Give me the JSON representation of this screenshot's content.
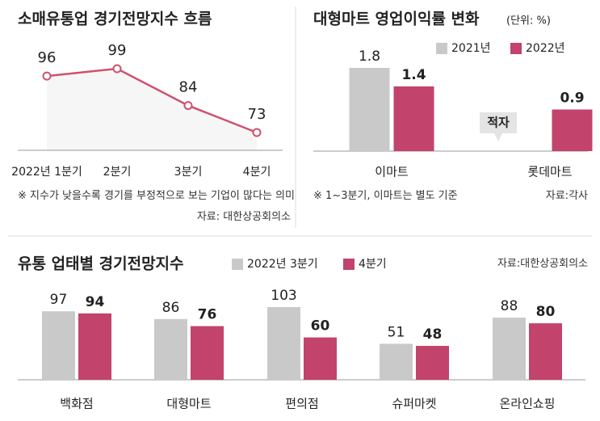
{
  "chart_data": [
    {
      "type": "line",
      "title": "소매유통업 경기전망지수 흐름",
      "categories": [
        "2022년 1분기",
        "2분기",
        "3분기",
        "4분기"
      ],
      "values": [
        96,
        99,
        84,
        73
      ],
      "color": "#d0506f",
      "note": "※ 지수가 낮을수록 경기를 부정적으로 보는 기업이 많다는 의미",
      "source": "자료: 대한상공회의소"
    },
    {
      "type": "bar",
      "title": "대형마트 영업이익률 변화",
      "unit": "(단위: %)",
      "categories": [
        "이마트",
        "롯데마트"
      ],
      "series": [
        {
          "name": "2021년",
          "color": "#c9c9c9",
          "values": [
            1.8,
            null
          ]
        },
        {
          "name": "2022년",
          "color": "#c2436b",
          "values": [
            1.4,
            0.9
          ]
        }
      ],
      "annotations": [
        "적자"
      ],
      "note": "※ 1~3분기, 이마트는 별도 기준",
      "source": "자료:각사"
    },
    {
      "type": "bar",
      "title": "유통 업태별 경기전망지수",
      "categories": [
        "백화점",
        "대형마트",
        "편의점",
        "슈퍼마켓",
        "온라인쇼핑"
      ],
      "series": [
        {
          "name": "2022년 3분기",
          "color": "#c9c9c9",
          "values": [
            97,
            86,
            103,
            51,
            88
          ]
        },
        {
          "name": "4분기",
          "color": "#c2436b",
          "values": [
            94,
            76,
            60,
            48,
            80
          ]
        }
      ],
      "source": "자료:대한상공회의소"
    }
  ]
}
